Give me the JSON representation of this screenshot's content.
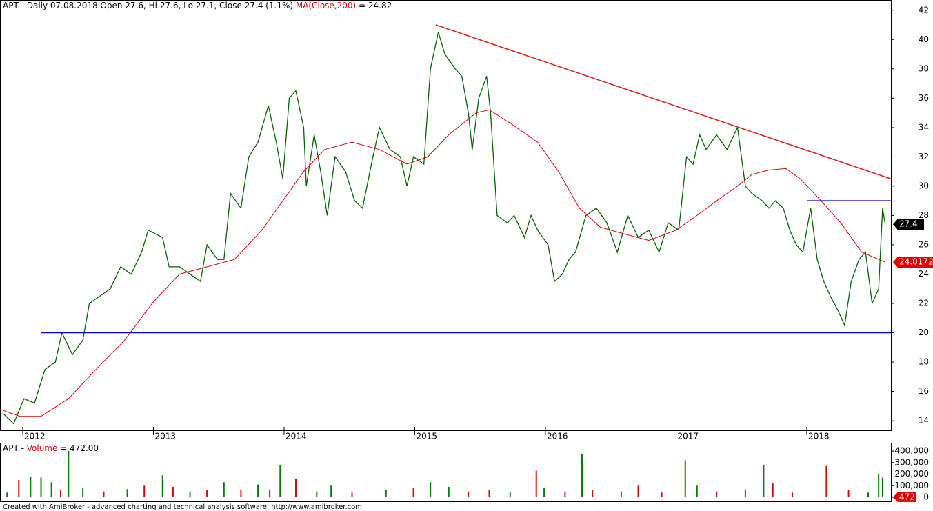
{
  "chart_data": [
    {
      "type": "line",
      "title_parts": [
        "APT - Daily 07.08.2018 Open 27.6, Hi 27.6, Lo 27.1, Close 27.4 (1.1%) ",
        "MA(Close,200)",
        " = 24.82"
      ],
      "xlim": [
        2011.826,
        2018.644
      ],
      "ylim": [
        13.3,
        42.6
      ],
      "xticks": [
        2012,
        2013,
        2014,
        2015,
        2016,
        2017,
        2018
      ],
      "yticks": [
        14,
        16,
        18,
        20,
        22,
        24,
        26,
        28,
        30,
        32,
        34,
        36,
        38,
        40,
        42
      ],
      "series": [
        {
          "color": "#006400",
          "x": [
            2011.85,
            2011.93,
            2012.01,
            2012.09,
            2012.17,
            2012.25,
            2012.3,
            2012.38,
            2012.46,
            2012.51,
            2012.59,
            2012.67,
            2012.75,
            2012.83,
            2012.91,
            2012.96,
            2013.07,
            2013.12,
            2013.2,
            2013.28,
            2013.36,
            2013.41,
            2013.49,
            2013.54,
            2013.59,
            2013.67,
            2013.73,
            2013.8,
            2013.88,
            2013.94,
            2013.99,
            2014.04,
            2014.09,
            2014.15,
            2014.17,
            2014.23,
            2014.28,
            2014.33,
            2014.39,
            2014.47,
            2014.54,
            2014.6,
            2014.68,
            2014.73,
            2014.81,
            2014.89,
            2014.94,
            2014.99,
            2015.07,
            2015.12,
            2015.18,
            2015.23,
            2015.31,
            2015.36,
            2015.41,
            2015.44,
            2015.49,
            2015.55,
            2015.58,
            2015.63,
            2015.71,
            2015.76,
            2015.84,
            2015.89,
            2015.94,
            2016.02,
            2016.07,
            2016.13,
            2016.18,
            2016.23,
            2016.31,
            2016.39,
            2016.47,
            2016.55,
            2016.63,
            2016.71,
            2016.79,
            2016.87,
            2016.94,
            2017.02,
            2017.08,
            2017.13,
            2017.18,
            2017.23,
            2017.31,
            2017.39,
            2017.47,
            2017.53,
            2017.58,
            2017.66,
            2017.71,
            2017.76,
            2017.82,
            2017.87,
            2017.92,
            2017.97,
            2018.03,
            2018.08,
            2018.13,
            2018.18,
            2018.24,
            2018.29,
            2018.34,
            2018.4,
            2018.45,
            2018.5,
            2018.55,
            2018.58,
            2018.6
          ],
          "values": [
            14.5,
            13.8,
            15.5,
            15.2,
            17.5,
            18,
            20,
            18.5,
            19.5,
            22,
            22.5,
            23,
            24.5,
            24,
            25.5,
            27,
            26.5,
            24.5,
            24.5,
            24,
            23.5,
            26,
            25,
            25,
            29.5,
            28.5,
            32,
            33,
            35.5,
            33,
            30.5,
            36,
            36.5,
            34,
            30,
            33.5,
            31,
            28,
            32,
            31,
            29,
            28.5,
            32,
            34,
            32.5,
            32,
            30,
            32,
            31.5,
            38,
            40.5,
            39,
            38,
            37.5,
            35,
            32.5,
            36,
            37.5,
            35,
            28,
            27.5,
            28,
            26.5,
            28,
            27,
            26,
            23.5,
            24,
            25,
            25.5,
            28,
            28.5,
            27.5,
            25.5,
            28,
            26.5,
            27,
            25.5,
            27.5,
            27,
            32,
            31.5,
            33.5,
            32.5,
            33.5,
            32.5,
            34,
            30,
            29.5,
            29,
            28.5,
            29,
            28.5,
            27,
            26,
            25.5,
            28.5,
            25,
            23.5,
            22.5,
            21.5,
            20.5,
            23.5,
            25,
            25.5,
            22,
            23,
            28.5,
            27.4
          ]
        },
        {
          "name": "MA(Close,200)",
          "color": "#e00000",
          "x": [
            2011.85,
            2011.98,
            2012.14,
            2012.35,
            2012.56,
            2012.78,
            2012.99,
            2013.2,
            2013.41,
            2013.62,
            2013.83,
            2013.99,
            2014.15,
            2014.31,
            2014.52,
            2014.73,
            2014.94,
            2015.1,
            2015.26,
            2015.47,
            2015.57,
            2015.73,
            2015.94,
            2016.1,
            2016.26,
            2016.42,
            2016.58,
            2016.79,
            2017.0,
            2017.16,
            2017.31,
            2017.47,
            2017.58,
            2017.71,
            2017.84,
            2017.95,
            2018.11,
            2018.26,
            2018.42,
            2018.6
          ],
          "values": [
            14.7,
            14.3,
            14.3,
            15.5,
            17.5,
            19.5,
            22,
            24,
            24.5,
            25,
            27,
            29,
            31,
            32.5,
            33,
            32.5,
            31.5,
            32,
            33.5,
            35,
            35.2,
            34.3,
            33,
            31,
            28.5,
            27.2,
            26.8,
            26.3,
            27,
            28,
            29,
            30,
            30.8,
            31.1,
            31.2,
            30.5,
            29,
            27.5,
            25.5,
            24.82
          ]
        }
      ],
      "trend_lines": [
        {
          "color": "#e02020",
          "x": [
            2015.16,
            2018.644
          ],
          "values": [
            41,
            30.5
          ]
        },
        {
          "color": "#0000cc",
          "x": [
            2012.14,
            2018.644
          ],
          "values": [
            20,
            20
          ]
        },
        {
          "color": "#0000cc",
          "x": [
            2018.0,
            2018.644
          ],
          "values": [
            29,
            29
          ]
        }
      ],
      "price_labels": [
        {
          "value": 27.4,
          "color": "#000000"
        },
        {
          "value": 24.8172,
          "color": "#e00000"
        }
      ]
    },
    {
      "type": "bar",
      "title_parts": [
        "APT - ",
        "Volume",
        " = 472.00"
      ],
      "xlim": [
        2011.826,
        2018.644
      ],
      "ylim": [
        0,
        430000
      ],
      "yticks": [
        0,
        {
          "value": 100000,
          "label": "100,000"
        },
        {
          "value": 200000,
          "label": "200,000"
        },
        {
          "value": 300000,
          "label": "300,000"
        },
        {
          "value": 400000,
          "label": "400,000"
        }
      ],
      "last_value": 472,
      "x": [
        2011.88,
        2011.97,
        2012.06,
        2012.14,
        2012.22,
        2012.29,
        2012.35,
        2012.46,
        2012.62,
        2012.8,
        2012.93,
        2013.07,
        2013.15,
        2013.28,
        2013.41,
        2013.54,
        2013.67,
        2013.8,
        2013.89,
        2013.97,
        2014.09,
        2014.25,
        2014.36,
        2014.52,
        2014.78,
        2014.99,
        2015.12,
        2015.26,
        2015.41,
        2015.57,
        2015.73,
        2015.93,
        2015.99,
        2016.15,
        2016.28,
        2016.36,
        2016.58,
        2016.71,
        2016.89,
        2017.07,
        2017.16,
        2017.31,
        2017.53,
        2017.67,
        2017.74,
        2017.89,
        2018.15,
        2018.32,
        2018.47,
        2018.55,
        2018.58
      ],
      "values": [
        40000,
        150000,
        180000,
        170000,
        130000,
        60000,
        400000,
        80000,
        50000,
        70000,
        100000,
        190000,
        90000,
        50000,
        60000,
        130000,
        60000,
        110000,
        60000,
        280000,
        160000,
        50000,
        100000,
        40000,
        60000,
        80000,
        130000,
        90000,
        50000,
        60000,
        40000,
        230000,
        80000,
        50000,
        370000,
        60000,
        50000,
        100000,
        40000,
        320000,
        100000,
        50000,
        60000,
        280000,
        120000,
        40000,
        270000,
        60000,
        40000,
        200000,
        170000
      ],
      "colors": [
        "#008000",
        "#e00000",
        "#008000",
        "#008000",
        "#008000",
        "#e00000",
        "#008000",
        "#008000",
        "#e00000",
        "#008000",
        "#e00000",
        "#008000",
        "#e00000",
        "#008000",
        "#e00000",
        "#008000",
        "#e00000",
        "#008000",
        "#e00000",
        "#008000",
        "#e00000",
        "#008000",
        "#008000",
        "#e00000",
        "#008000",
        "#e00000",
        "#008000",
        "#008000",
        "#e00000",
        "#e00000",
        "#008000",
        "#e00000",
        "#008000",
        "#e00000",
        "#008000",
        "#e00000",
        "#008000",
        "#e00000",
        "#e00000",
        "#008000",
        "#008000",
        "#e00000",
        "#008000",
        "#008000",
        "#e00000",
        "#e00000",
        "#e00000",
        "#e00000",
        "#008000",
        "#008000",
        "#008000"
      ]
    }
  ],
  "footer": "Created with AmiBroker - advanced charting and technical analysis software. http://www.amibroker.com"
}
